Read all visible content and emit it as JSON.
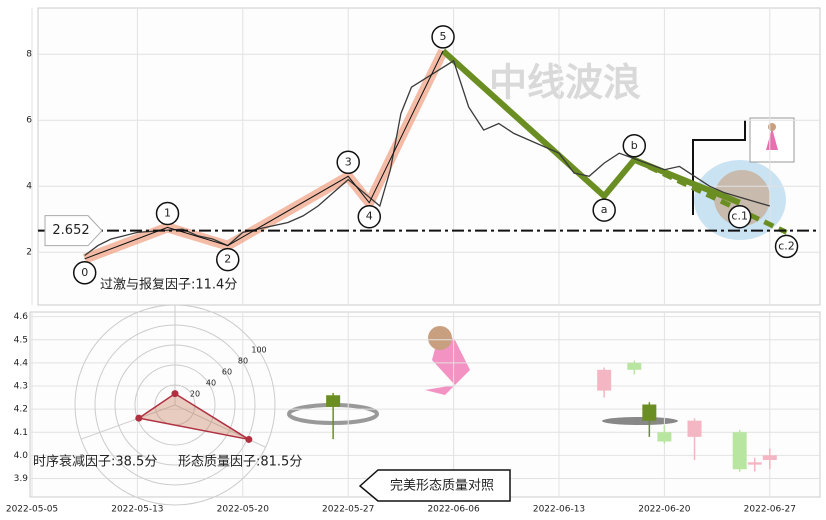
{
  "watermark": "中线波浪",
  "chart_data": [
    {
      "type": "line",
      "x": [
        "2022-05-09",
        "2022-05-10",
        "2022-05-11",
        "2022-05-12",
        "2022-05-13",
        "2022-05-16",
        "2022-05-17",
        "2022-05-18",
        "2022-05-19",
        "2022-05-20",
        "2022-05-23",
        "2022-05-24",
        "2022-05-25",
        "2022-05-26",
        "2022-05-27",
        "2022-05-30",
        "2022-05-31",
        "2022-06-01",
        "2022-06-02",
        "2022-06-06",
        "2022-06-07",
        "2022-06-08",
        "2022-06-09",
        "2022-06-10",
        "2022-06-13",
        "2022-06-14",
        "2022-06-15",
        "2022-06-16",
        "2022-06-17",
        "2022-06-20",
        "2022-06-21",
        "2022-06-22",
        "2022-06-23",
        "2022-06-24",
        "2022-06-27"
      ],
      "values": [
        1.9,
        2.2,
        2.4,
        2.5,
        2.6,
        2.7,
        2.5,
        2.4,
        2.2,
        2.6,
        2.9,
        3.1,
        3.4,
        3.8,
        4.2,
        3.4,
        4.5,
        6.2,
        7.0,
        7.8,
        6.4,
        5.7,
        5.9,
        5.6,
        5.0,
        4.4,
        4.3,
        4.7,
        5.0,
        4.5,
        4.6,
        4.3,
        4.0,
        3.8,
        3.4
      ],
      "color": "#3a3a3a",
      "ylim": [
        0.4,
        9.4
      ],
      "yticks": [
        2,
        4,
        6,
        8
      ],
      "grid": true,
      "hline": 2.652,
      "waves": {
        "labels": [
          "0",
          "1",
          "2",
          "3",
          "4",
          "5",
          "a",
          "b",
          "c.1",
          "c.2"
        ],
        "x": [
          "2022-05-09",
          "2022-05-15",
          "2022-05-19",
          "2022-05-27",
          "2022-05-29",
          "2022-06-05",
          "2022-06-16",
          "2022-06-18",
          "2022-06-25",
          "2022-06-28"
        ],
        "values": [
          1.8,
          2.75,
          2.2,
          4.3,
          3.5,
          8.1,
          3.7,
          4.8,
          3.5,
          2.6
        ]
      },
      "impulse_color": "#f0a080",
      "corrective_color": "#6b8e23"
    },
    {
      "type": "candlestick",
      "xlim": [
        "2022-05-03",
        "2022-06-30"
      ],
      "xticks": [
        "2022-05-05",
        "2022-05-13",
        "2022-05-20",
        "2022-05-27",
        "2022-06-06",
        "2022-06-13",
        "2022-06-20",
        "2022-06-27"
      ],
      "ylim": [
        3.82,
        4.62
      ],
      "yticks": [
        3.9,
        {
          "value": 4,
          "label": "4.0"
        },
        4.1,
        4.2,
        4.3,
        4.4,
        4.5,
        4.6
      ],
      "grid": true,
      "candles": [
        {
          "x": "2022-05-26",
          "open": 4.21,
          "high": 4.27,
          "low": 4.07,
          "close": 4.26,
          "color": "#6b8e23"
        },
        {
          "x": "2022-06-16",
          "open": 4.28,
          "high": 4.38,
          "low": 4.25,
          "close": 4.37,
          "color": "#f4b6c2"
        },
        {
          "x": "2022-06-18",
          "open": 4.4,
          "high": 4.41,
          "low": 4.35,
          "close": 4.37,
          "color": "#b8e6a0"
        },
        {
          "x": "2022-06-19",
          "open": 4.22,
          "high": 4.23,
          "low": 4.08,
          "close": 4.15,
          "color": "#6b8e23"
        },
        {
          "x": "2022-06-20",
          "open": 4.1,
          "high": 4.13,
          "low": 4.05,
          "close": 4.06,
          "color": "#b8e6a0"
        },
        {
          "x": "2022-06-22",
          "open": 4.08,
          "high": 4.16,
          "low": 3.98,
          "close": 4.15,
          "color": "#f4b6c2"
        },
        {
          "x": "2022-06-25",
          "open": 4.1,
          "high": 4.11,
          "low": 3.93,
          "close": 3.94,
          "color": "#b8e6a0"
        },
        {
          "x": "2022-06-26",
          "open": 3.96,
          "high": 3.99,
          "low": 3.93,
          "close": 3.97,
          "color": "#f4b6c2"
        },
        {
          "x": "2022-06-27",
          "open": 3.98,
          "high": 4.03,
          "low": 3.94,
          "close": 4.0,
          "color": "#f4b6c2"
        }
      ],
      "radar": {
        "ticks": [
          20,
          40,
          60,
          80,
          100
        ],
        "labels": [
          "过激与报复因子:11.4分",
          "时序衰减因子:38.5分",
          "形态质量因子:81.5分"
        ],
        "values": [
          11.4,
          38.5,
          81.5
        ],
        "color": "#b03040"
      },
      "button": "完美形态质量对照"
    }
  ]
}
